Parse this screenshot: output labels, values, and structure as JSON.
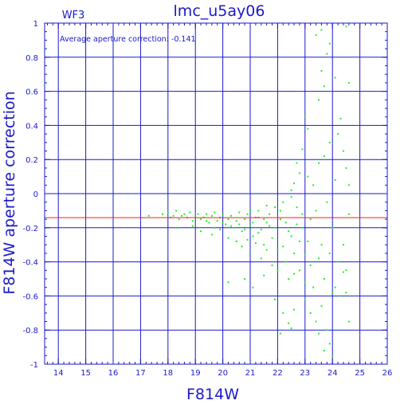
{
  "chart_data": {
    "type": "scatter",
    "title": "lmc_u5ay06",
    "subtitle": "WF3",
    "annotation": "Average aperture correction: -0.141",
    "xlabel": "F814W",
    "ylabel": "F814W aperture correction",
    "xlim": [
      13.5,
      26
    ],
    "ylim": [
      -1,
      1
    ],
    "xticks": [
      "14",
      "15",
      "16",
      "17",
      "18",
      "19",
      "20",
      "21",
      "22",
      "23",
      "24",
      "25",
      "26"
    ],
    "yticks": [
      "-1",
      "-0.8",
      "-0.6",
      "-0.4",
      "-0.2",
      "0",
      "0.2",
      "0.4",
      "0.6",
      "0.8",
      "1"
    ],
    "grid": true,
    "reference_line": {
      "y": -0.141
    },
    "series": [
      {
        "points": [
          [
            17.3,
            -0.13
          ],
          [
            17.8,
            -0.12
          ],
          [
            18.0,
            -0.11
          ],
          [
            18.1,
            -0.14
          ],
          [
            18.2,
            -0.13
          ],
          [
            18.3,
            -0.1
          ],
          [
            18.4,
            -0.15
          ],
          [
            18.5,
            -0.13
          ],
          [
            18.6,
            -0.12
          ],
          [
            18.7,
            -0.14
          ],
          [
            18.8,
            -0.11
          ],
          [
            18.9,
            -0.16
          ],
          [
            19.0,
            -0.13
          ],
          [
            19.1,
            -0.12
          ],
          [
            19.2,
            -0.15
          ],
          [
            19.3,
            -0.14
          ],
          [
            19.4,
            -0.12
          ],
          [
            19.5,
            -0.17
          ],
          [
            19.6,
            -0.13
          ],
          [
            19.7,
            -0.11
          ],
          [
            19.8,
            -0.16
          ],
          [
            19.9,
            -0.14
          ],
          [
            20.0,
            -0.12
          ],
          [
            20.1,
            -0.18
          ],
          [
            20.2,
            -0.15
          ],
          [
            20.3,
            -0.13
          ],
          [
            20.4,
            -0.2
          ],
          [
            20.5,
            -0.16
          ],
          [
            20.6,
            -0.11
          ],
          [
            20.7,
            -0.22
          ],
          [
            20.8,
            -0.15
          ],
          [
            20.9,
            -0.12
          ],
          [
            21.0,
            -0.19
          ],
          [
            21.1,
            -0.25
          ],
          [
            21.2,
            -0.14
          ],
          [
            21.3,
            -0.1
          ],
          [
            21.4,
            -0.21
          ],
          [
            21.5,
            -0.3
          ],
          [
            21.6,
            -0.17
          ],
          [
            21.7,
            -0.12
          ],
          [
            21.8,
            -0.26
          ],
          [
            21.9,
            -0.08
          ],
          [
            22.0,
            -0.33
          ],
          [
            22.1,
            -0.15
          ],
          [
            22.2,
            -0.05
          ],
          [
            22.3,
            -0.4
          ],
          [
            22.4,
            -0.22
          ],
          [
            22.5,
            0.02
          ],
          [
            22.6,
            -0.35
          ],
          [
            22.7,
            -0.18
          ],
          [
            18.3,
            -0.2
          ],
          [
            18.9,
            -0.19
          ],
          [
            19.2,
            -0.22
          ],
          [
            19.6,
            -0.24
          ],
          [
            19.9,
            -0.21
          ],
          [
            20.2,
            -0.26
          ],
          [
            20.5,
            -0.28
          ],
          [
            20.7,
            -0.31
          ],
          [
            20.9,
            -0.27
          ],
          [
            21.0,
            -0.35
          ],
          [
            21.2,
            -0.29
          ],
          [
            21.4,
            -0.38
          ],
          [
            21.6,
            -0.33
          ],
          [
            21.8,
            -0.42
          ],
          [
            22.0,
            -0.45
          ],
          [
            22.2,
            -0.31
          ],
          [
            22.4,
            -0.5
          ],
          [
            22.6,
            -0.47
          ],
          [
            22.8,
            -0.28
          ],
          [
            23.0,
            -0.52
          ],
          [
            20.2,
            -0.52
          ],
          [
            20.8,
            -0.5
          ],
          [
            21.1,
            -0.55
          ],
          [
            21.5,
            -0.48
          ],
          [
            21.9,
            -0.62
          ],
          [
            22.2,
            -0.7
          ],
          [
            22.4,
            -0.76
          ],
          [
            22.5,
            -0.79
          ],
          [
            22.1,
            -0.82
          ],
          [
            22.6,
            -0.68
          ],
          [
            22.8,
            -0.45
          ],
          [
            23.0,
            -0.62
          ],
          [
            23.2,
            -0.7
          ],
          [
            23.4,
            -0.75
          ],
          [
            23.5,
            -0.82
          ],
          [
            23.6,
            -0.66
          ],
          [
            23.8,
            -0.8
          ],
          [
            23.9,
            -0.88
          ],
          [
            24.0,
            -0.58
          ],
          [
            23.7,
            -0.92
          ],
          [
            23.2,
            -0.15
          ],
          [
            23.3,
            0.05
          ],
          [
            23.1,
            0.1
          ],
          [
            23.4,
            -0.1
          ],
          [
            23.5,
            0.18
          ],
          [
            23.6,
            -0.3
          ],
          [
            23.7,
            0.22
          ],
          [
            23.8,
            -0.05
          ],
          [
            23.9,
            0.3
          ],
          [
            24.0,
            -0.2
          ],
          [
            24.1,
            0.08
          ],
          [
            24.2,
            0.35
          ],
          [
            24.3,
            0.44
          ],
          [
            24.4,
            0.25
          ],
          [
            24.5,
            0.15
          ],
          [
            24.6,
            0.05
          ],
          [
            24.2,
            -0.4
          ],
          [
            24.4,
            -0.46
          ],
          [
            24.5,
            -0.58
          ],
          [
            24.6,
            -0.12
          ],
          [
            23.5,
            0.55
          ],
          [
            23.6,
            0.72
          ],
          [
            23.7,
            0.63
          ],
          [
            23.8,
            0.82
          ],
          [
            23.9,
            0.88
          ],
          [
            23.4,
            0.93
          ],
          [
            23.6,
            0.96
          ],
          [
            24.1,
            0.68
          ],
          [
            24.5,
            0.98
          ],
          [
            24.6,
            0.65
          ],
          [
            23.0,
            0.45
          ],
          [
            22.9,
            0.26
          ],
          [
            23.1,
            0.38
          ],
          [
            22.8,
            0.12
          ],
          [
            22.7,
            0.18
          ],
          [
            22.6,
            0.06
          ],
          [
            22.5,
            -0.02
          ],
          [
            22.9,
            -0.12
          ],
          [
            23.0,
            -0.36
          ],
          [
            23.2,
            -0.42
          ],
          [
            21.0,
            -0.1
          ],
          [
            21.3,
            -0.14
          ],
          [
            21.6,
            -0.07
          ],
          [
            21.9,
            -0.2
          ],
          [
            22.1,
            -0.1
          ],
          [
            22.3,
            -0.17
          ],
          [
            22.5,
            -0.25
          ],
          [
            22.7,
            -0.08
          ],
          [
            22.9,
            -0.2
          ],
          [
            23.1,
            -0.28
          ],
          [
            19.4,
            -0.16
          ],
          [
            19.7,
            -0.2
          ],
          [
            20.0,
            -0.17
          ],
          [
            20.3,
            -0.19
          ],
          [
            20.6,
            -0.18
          ],
          [
            20.8,
            -0.21
          ],
          [
            21.1,
            -0.17
          ],
          [
            21.3,
            -0.23
          ],
          [
            21.5,
            -0.15
          ],
          [
            21.7,
            -0.19
          ],
          [
            23.3,
            -0.55
          ],
          [
            23.5,
            -0.38
          ],
          [
            23.7,
            -0.5
          ],
          [
            23.9,
            -0.35
          ],
          [
            24.1,
            -0.55
          ],
          [
            24.3,
            -0.6
          ],
          [
            24.4,
            -0.3
          ],
          [
            24.5,
            -0.45
          ],
          [
            24.6,
            -0.75
          ],
          [
            24.0,
            -0.95
          ]
        ]
      }
    ],
    "colors": {
      "axis": "#1a1acd",
      "grid": "#1a1acd",
      "points": "#22ee22",
      "reference": "#ee2222",
      "text": "#1a1acd",
      "background": "#ffffff"
    }
  }
}
